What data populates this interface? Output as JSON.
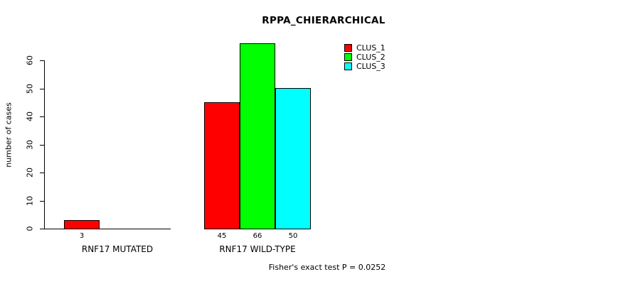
{
  "chart_data": {
    "type": "bar",
    "title": "RPPA_CHIERARCHICAL",
    "xlabel": "",
    "ylabel": "number of cases",
    "ylim": [
      0,
      66
    ],
    "yticks": [
      0,
      10,
      20,
      30,
      40,
      50,
      60
    ],
    "grid": false,
    "legend_position": "top-right",
    "categories": [
      "RNF17 MUTATED",
      "RNF17 WILD-TYPE"
    ],
    "series": [
      {
        "name": "CLUS_1",
        "color": "#ff0000",
        "values": [
          3,
          45
        ]
      },
      {
        "name": "CLUS_2",
        "color": "#00ff00",
        "values": [
          0,
          66
        ]
      },
      {
        "name": "CLUS_3",
        "color": "#00ffff",
        "values": [
          0,
          50
        ]
      }
    ],
    "value_labels": [
      [
        "3",
        "",
        ""
      ],
      [
        "45",
        "66",
        "50"
      ]
    ],
    "legend": [
      {
        "label": "CLUS_1",
        "color": "#ff0000"
      },
      {
        "label": "CLUS_2",
        "color": "#00ff00"
      },
      {
        "label": "CLUS_3",
        "color": "#00ffff"
      }
    ],
    "annotation": "Fisher's exact test P = 0.0252"
  }
}
